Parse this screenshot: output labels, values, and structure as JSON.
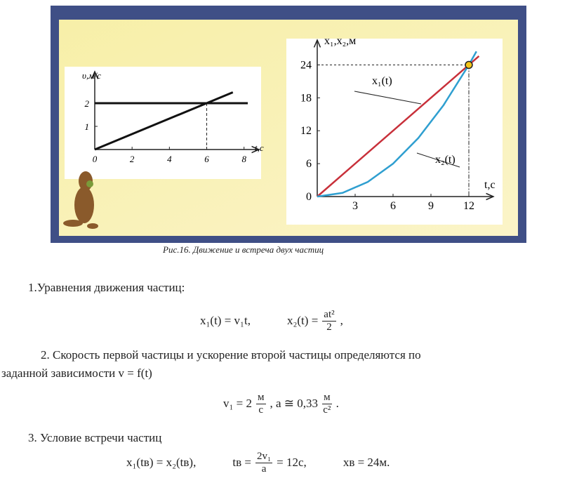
{
  "chart_data": [
    {
      "type": "line",
      "ylabel": "υ,м/с",
      "xlabel": "t,c",
      "xlim": [
        0,
        8.5
      ],
      "ylim": [
        0,
        3
      ],
      "xticks": [
        0,
        2,
        4,
        6,
        8
      ],
      "yticks": [
        1,
        2
      ],
      "series": [
        {
          "color": "#111111",
          "x": [
            0,
            8.2
          ],
          "values": [
            2,
            2
          ]
        },
        {
          "color": "#111111",
          "x": [
            0,
            7.4
          ],
          "values": [
            0,
            2.47
          ]
        }
      ],
      "intersection": {
        "x": 6,
        "y": 2
      }
    },
    {
      "type": "line",
      "ylabel": "x₁,x₂,м",
      "xlabel": "t,c",
      "xlim": [
        0,
        13.5
      ],
      "ylim": [
        0,
        27
      ],
      "xticks": [
        3,
        6,
        9,
        12
      ],
      "yticks": [
        0,
        6,
        12,
        18,
        24
      ],
      "series": [
        {
          "color": "#c8303a",
          "x": [
            0,
            12.8
          ],
          "values": [
            0,
            25.6
          ]
        },
        {
          "color": "#2f9fd0",
          "x": [
            0,
            2,
            4,
            6,
            8,
            10,
            12,
            12.6
          ],
          "values": [
            0,
            0.67,
            2.67,
            6,
            10.67,
            16.67,
            24,
            26.46
          ]
        }
      ],
      "annotations": [
        "x₁(t)",
        "x₂(t)"
      ],
      "meeting_point": {
        "x": 12,
        "y": 24
      }
    }
  ],
  "document": {
    "caption": "Рис.16. Движение и встреча двух частиц",
    "p1": "1.Уравнения движения частиц:",
    "eq1": {
      "a": "x₁(t) = v₁t,",
      "b": "x₂(t) =",
      "num": "at²",
      "den": "2",
      "end": ","
    },
    "p2_line1": "2. Скорость первой частицы и ускорение второй частицы определяются по",
    "p2_line2": "заданной зависимости v = f(t)",
    "eq2": {
      "a": "v₁ = 2",
      "num1": "м",
      "den1": "с",
      "b": ", a ≅ 0,33",
      "num2": "м",
      "den2": "с²",
      "end": "."
    },
    "p3": "3. Условие встречи частиц",
    "eq3": {
      "a": "x₁(tв) = x₂(tв),",
      "b": "tв =",
      "num": "2v₁",
      "den": "a",
      "c": "= 12с,",
      "d": "xв = 24м."
    }
  }
}
